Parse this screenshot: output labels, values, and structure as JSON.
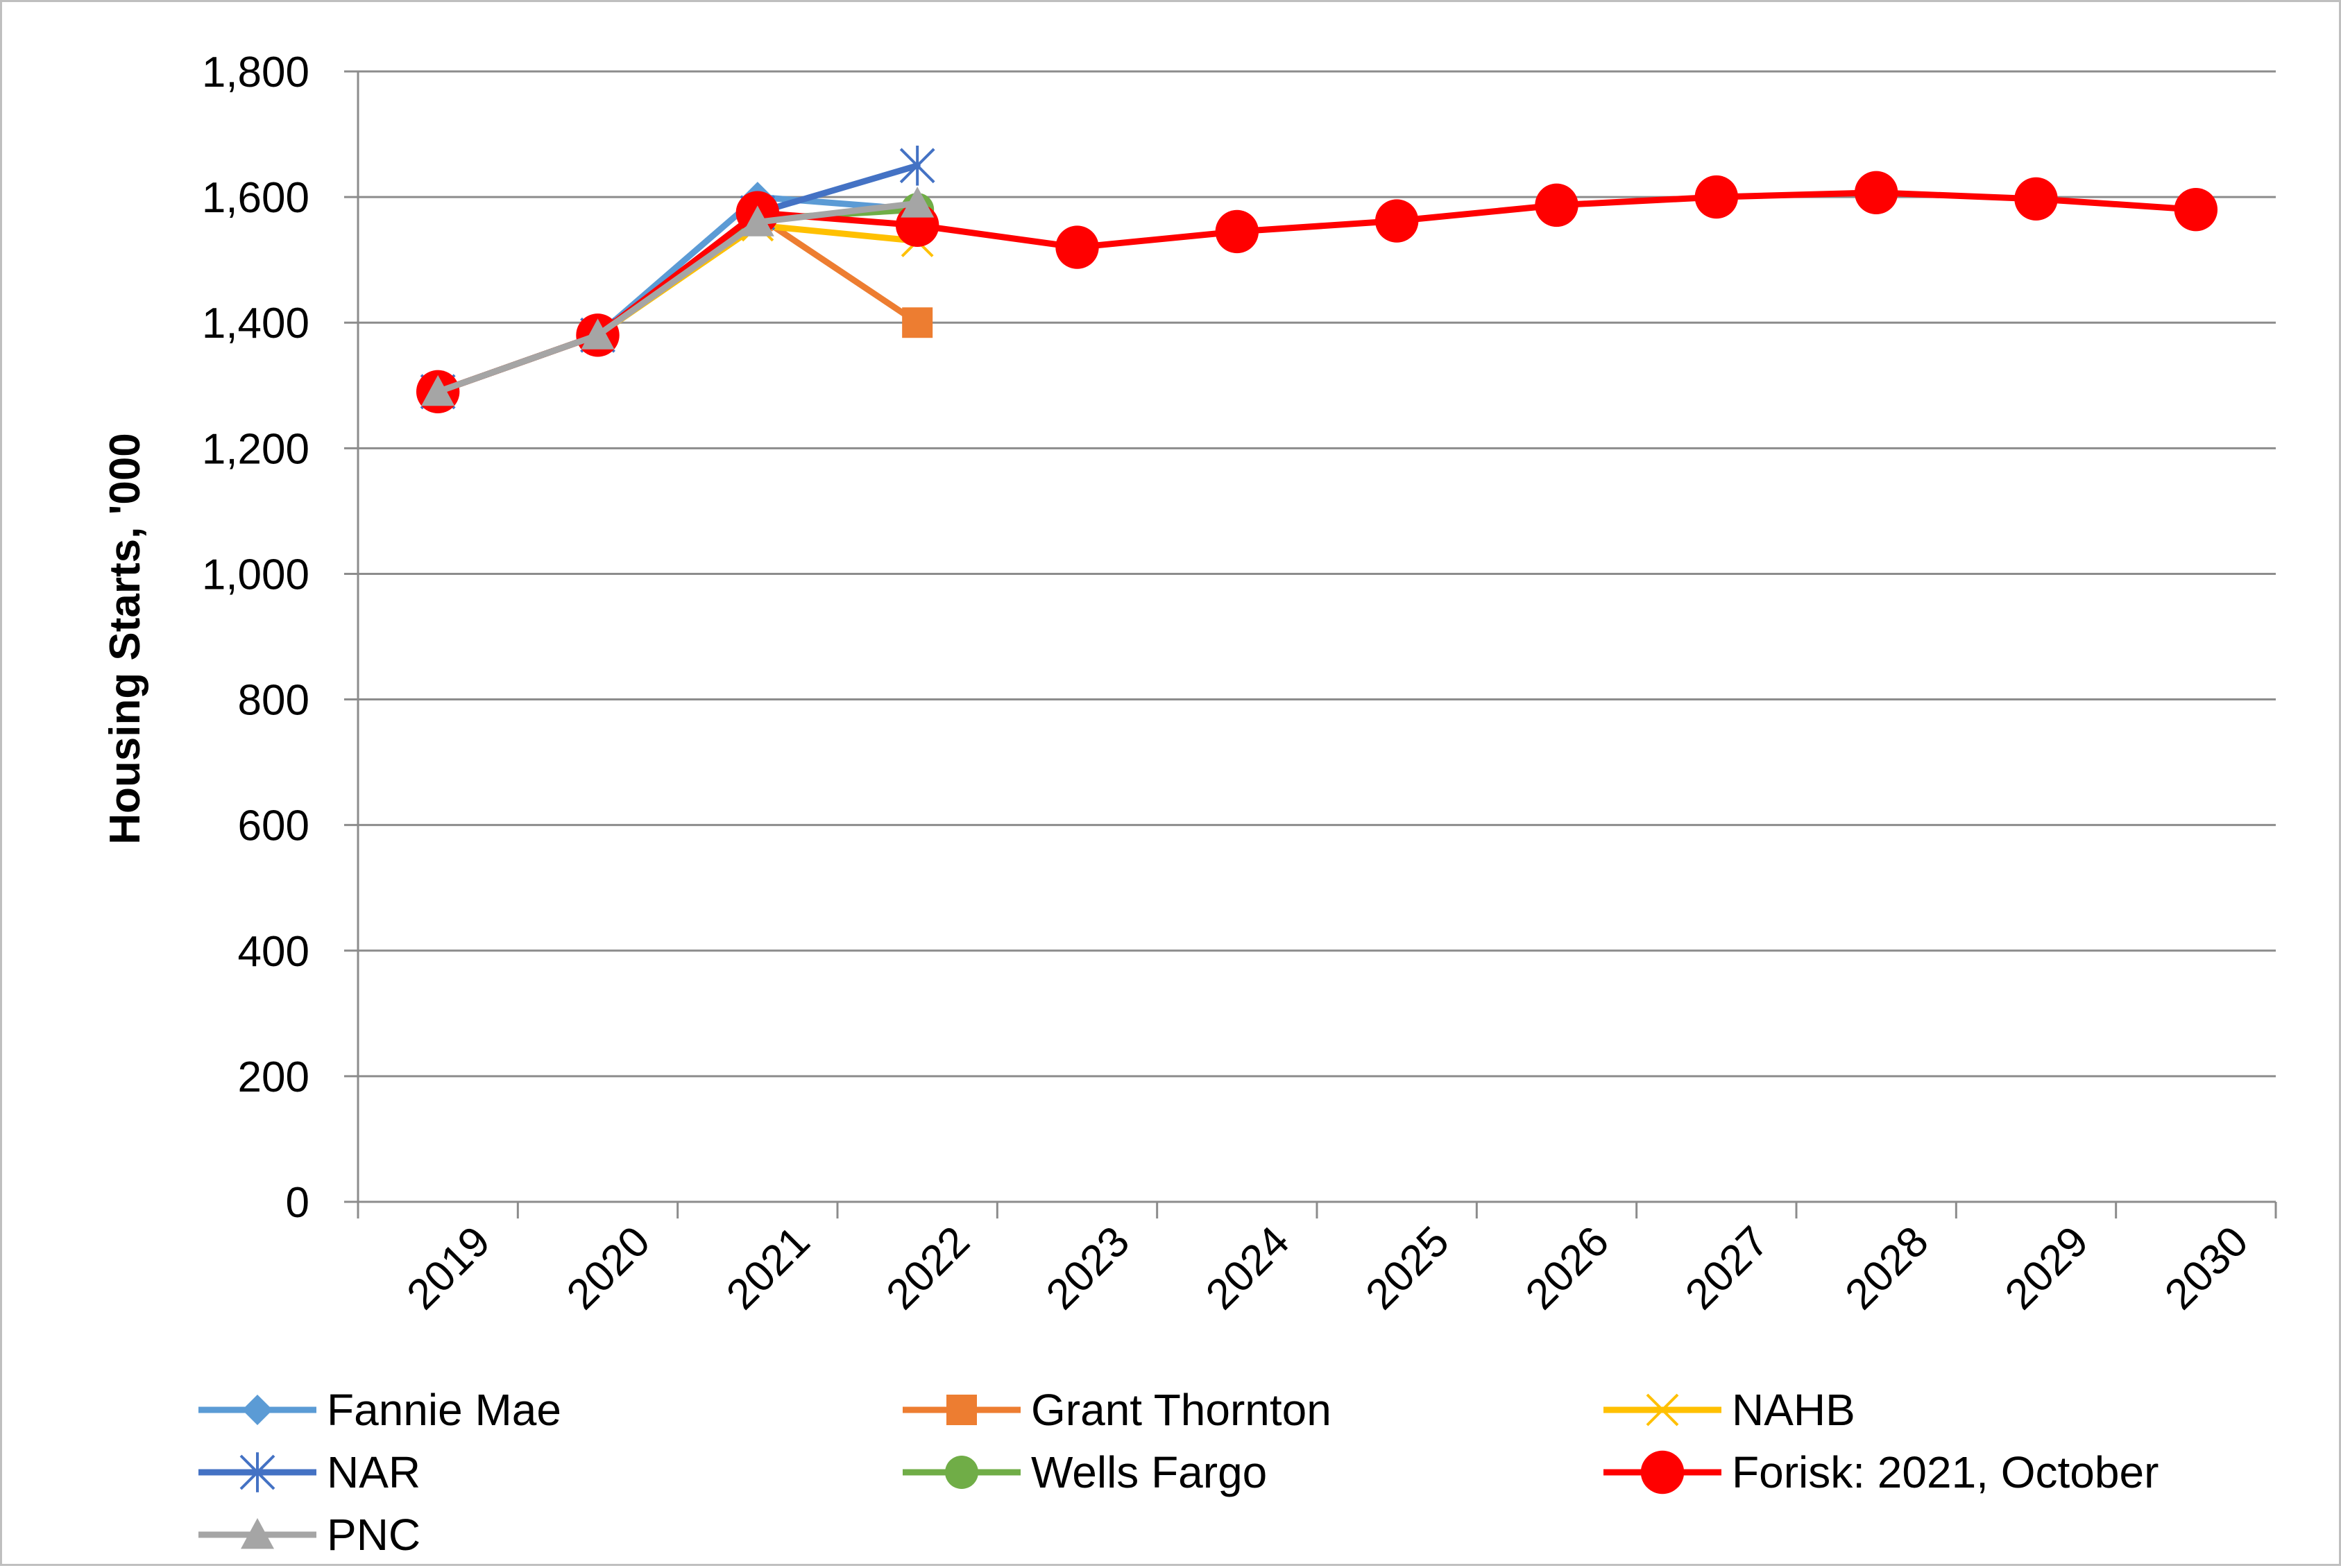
{
  "chart_data": {
    "type": "line",
    "title": "",
    "xlabel": "",
    "ylabel": "Housing Starts, '000",
    "ylim": [
      0,
      1800
    ],
    "y_ticks": [
      0,
      200,
      400,
      600,
      800,
      1000,
      1200,
      1400,
      1600,
      1800
    ],
    "y_tick_labels": [
      "0",
      "200",
      "400",
      "600",
      "800",
      "1,000",
      "1,200",
      "1,400",
      "1,600",
      "1,800"
    ],
    "categories": [
      "2019",
      "2020",
      "2021",
      "2022",
      "2023",
      "2024",
      "2025",
      "2026",
      "2027",
      "2028",
      "2029",
      "2030"
    ],
    "grid": "horizontal",
    "legend_position": "bottom",
    "series": [
      {
        "name": "Fannie Mae",
        "color": "#5b9bd5",
        "marker": "diamond",
        "values": [
          1290,
          1380,
          1600,
          1580,
          null,
          null,
          null,
          null,
          null,
          null,
          null,
          null
        ]
      },
      {
        "name": "Grant Thornton",
        "color": "#ed7d31",
        "marker": "square",
        "values": [
          1290,
          1380,
          1570,
          1400,
          null,
          null,
          null,
          null,
          null,
          null,
          null,
          null
        ]
      },
      {
        "name": "NAHB",
        "color": "#ffc000",
        "marker": "x",
        "values": [
          1290,
          1380,
          1555,
          1530,
          null,
          null,
          null,
          null,
          null,
          null,
          null,
          null
        ]
      },
      {
        "name": "NAR",
        "color": "#4472c4",
        "marker": "star",
        "values": [
          1290,
          1380,
          1575,
          1650,
          null,
          null,
          null,
          null,
          null,
          null,
          null,
          null
        ]
      },
      {
        "name": "Wells Fargo",
        "color": "#70ad47",
        "marker": "circle",
        "values": [
          1290,
          1380,
          1565,
          1580,
          null,
          null,
          null,
          null,
          null,
          null,
          null,
          null
        ]
      },
      {
        "name": "Forisk: 2021, October",
        "color": "#ff0000",
        "marker": "circle",
        "values": [
          1290,
          1380,
          1575,
          1555,
          1520,
          1545,
          1562,
          1587,
          1600,
          1607,
          1597,
          1580
        ]
      },
      {
        "name": "PNC",
        "color": "#a5a5a5",
        "marker": "triangle",
        "values": [
          1290,
          1380,
          1560,
          1590,
          null,
          null,
          null,
          null,
          null,
          null,
          null,
          null
        ]
      }
    ]
  }
}
